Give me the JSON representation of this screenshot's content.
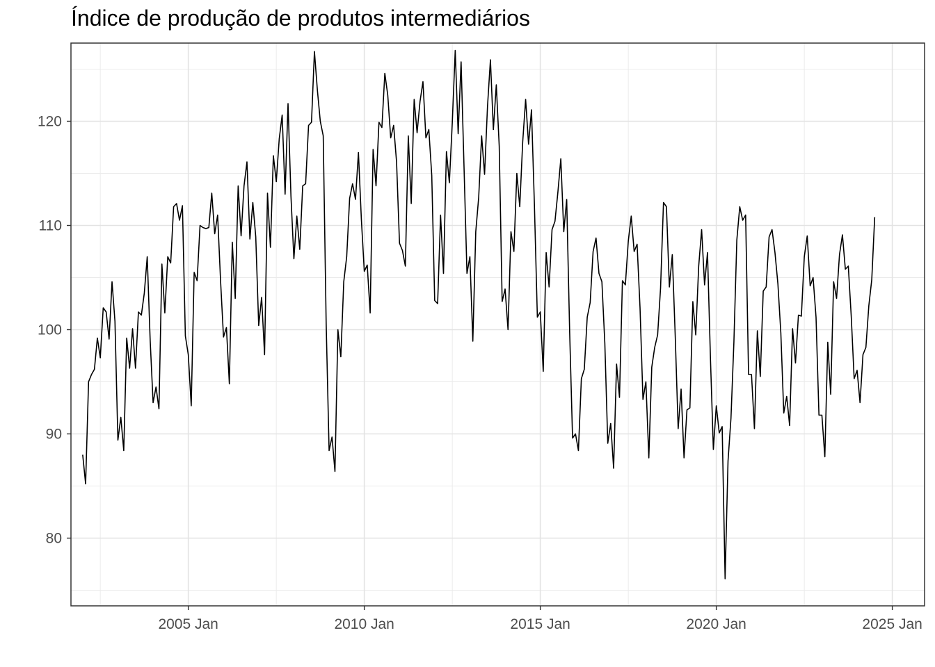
{
  "chart_data": {
    "type": "line",
    "title": "Índice de produção de produtos intermediários",
    "xlabel": "",
    "ylabel": "",
    "x_ticks": [
      "2005 Jan",
      "2010 Jan",
      "2015 Jan",
      "2020 Jan",
      "2025 Jan"
    ],
    "y_ticks": [
      80,
      90,
      100,
      110,
      120
    ],
    "xlim": [
      "2001-09",
      "2025-12"
    ],
    "ylim": [
      73.5,
      127.5
    ],
    "grid": true,
    "legend": "none",
    "line_color": "#000000",
    "start": "2002-01",
    "frequency": "monthly",
    "series": [
      {
        "values": [
          88.0,
          85.2,
          95.0,
          95.7,
          96.2,
          99.2,
          97.3,
          102.1,
          101.7,
          99.1,
          104.6,
          100.8,
          89.4,
          91.6,
          88.4,
          99.2,
          96.3,
          100.1,
          96.3,
          101.7,
          101.4,
          103.5,
          107.0,
          99.0,
          93.0,
          94.5,
          92.4,
          106.3,
          101.6,
          107.0,
          106.4,
          111.8,
          112.1,
          110.5,
          111.9,
          99.4,
          97.6,
          92.7,
          105.5,
          104.7,
          110.0,
          109.8,
          109.7,
          109.8,
          113.1,
          109.2,
          111.0,
          104.7,
          99.3,
          100.2,
          94.8,
          108.4,
          103.0,
          113.8,
          109.0,
          113.8,
          116.1,
          108.7,
          112.2,
          108.9,
          100.4,
          103.1,
          97.6,
          113.1,
          107.9,
          116.7,
          114.2,
          118.3,
          120.6,
          113.0,
          121.7,
          112.8,
          106.8,
          110.9,
          107.7,
          113.8,
          114.0,
          119.6,
          119.9,
          126.7,
          123.0,
          120.0,
          118.6,
          100.6,
          88.4,
          89.7,
          86.4,
          100.0,
          97.4,
          104.6,
          107.0,
          112.6,
          114.0,
          112.5,
          117.0,
          110.6,
          105.6,
          106.2,
          101.6,
          117.3,
          113.8,
          119.9,
          119.4,
          124.6,
          122.5,
          118.4,
          119.6,
          116.1,
          108.3,
          107.6,
          106.1,
          118.6,
          112.1,
          122.1,
          118.9,
          121.9,
          123.8,
          118.4,
          119.2,
          114.8,
          102.8,
          102.5,
          111.0,
          105.4,
          117.1,
          114.1,
          119.9,
          126.8,
          118.8,
          125.7,
          115.6,
          105.4,
          107.0,
          98.9,
          109.4,
          112.7,
          118.6,
          114.9,
          121.4,
          125.9,
          119.2,
          123.5,
          117.6,
          102.7,
          103.9,
          100.0,
          109.4,
          107.5,
          115.0,
          111.8,
          118.0,
          122.1,
          117.8,
          121.1,
          111.9,
          101.2,
          101.7,
          96.0,
          107.4,
          104.1,
          109.6,
          110.4,
          113.2,
          116.4,
          109.4,
          112.5,
          99.9,
          89.6,
          90.0,
          88.4,
          95.3,
          96.2,
          101.2,
          102.6,
          107.5,
          108.8,
          105.4,
          104.6,
          98.7,
          89.1,
          91.0,
          86.7,
          96.7,
          93.5,
          104.7,
          104.3,
          108.5,
          110.9,
          107.5,
          108.2,
          102.1,
          93.3,
          95.0,
          87.7,
          96.4,
          98.3,
          99.5,
          104.0,
          112.2,
          111.8,
          104.1,
          107.2,
          99.4,
          90.5,
          94.3,
          87.7,
          92.3,
          92.5,
          102.7,
          99.5,
          106.1,
          109.6,
          104.3,
          107.4,
          97.3,
          88.5,
          92.7,
          90.1,
          90.7,
          76.1,
          87.4,
          91.5,
          98.8,
          108.6,
          111.8,
          110.5,
          111.0,
          95.7,
          95.7,
          90.5,
          99.9,
          95.5,
          103.7,
          104.1,
          108.9,
          109.6,
          107.4,
          104.4,
          99.7,
          92.0,
          93.6,
          90.8,
          100.1,
          96.8,
          101.4,
          101.3,
          107.0,
          109.0,
          104.2,
          105.0,
          101.2,
          91.8,
          91.8,
          87.8,
          98.8,
          93.8,
          104.6,
          103.0,
          107.2,
          109.1,
          105.8,
          106.1,
          101.3,
          95.3,
          96.1,
          93.0,
          97.6,
          98.3,
          102.3,
          104.8,
          110.8
        ]
      }
    ]
  }
}
